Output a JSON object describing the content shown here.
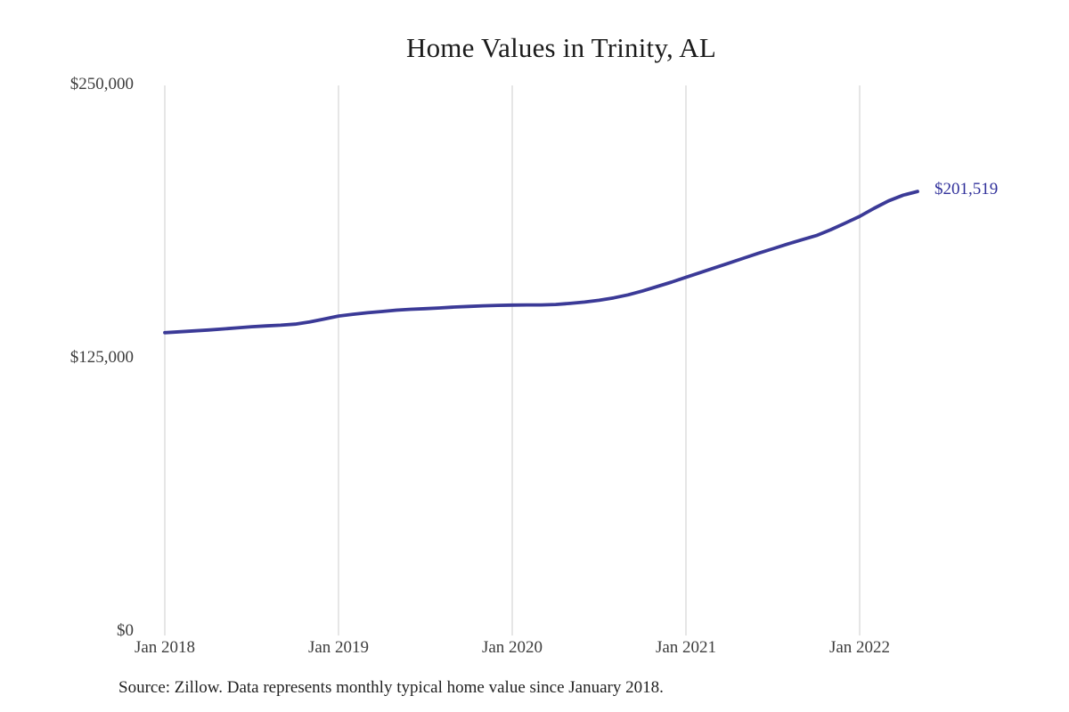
{
  "title": "Home Values in Trinity, AL",
  "source_note": "Source: Zillow. Data represents monthly typical home value since January 2018.",
  "end_label": "$201,519",
  "colors": {
    "line": "#3b3a97",
    "end_label": "#31319b",
    "gridline": "#cccccc",
    "axis_label": "#3d3d3d",
    "title": "#1b1b1b",
    "background": "#ffffff"
  },
  "chart_data": {
    "type": "line",
    "title": "Home Values in Trinity, AL",
    "xlabel": "",
    "ylabel": "",
    "ylim": [
      0,
      250000
    ],
    "grid": "vertical-only",
    "legend": "none",
    "frequency": "monthly",
    "start_month": "Jan 2018",
    "end_month": "May 2022",
    "x_tick_labels": [
      "Jan 2018",
      "Jan 2019",
      "Jan 2020",
      "Jan 2021",
      "Jan 2022"
    ],
    "y_tick_labels": [
      "$0",
      "$125,000",
      "$250,000"
    ],
    "y_tick_values": [
      0,
      125000,
      250000
    ],
    "series": [
      {
        "name": "Typical home value",
        "end_value": 201519,
        "values": [
          136900,
          137300,
          137700,
          138100,
          138600,
          139100,
          139600,
          140000,
          140300,
          140800,
          141800,
          143100,
          144500,
          145300,
          146000,
          146600,
          147200,
          147600,
          147900,
          148200,
          148600,
          148900,
          149200,
          149400,
          149500,
          149600,
          149600,
          149800,
          150300,
          150900,
          151700,
          152800,
          154200,
          156000,
          158000,
          160000,
          162200,
          164400,
          166600,
          168800,
          171000,
          173200,
          175300,
          177400,
          179400,
          181300,
          184000,
          187000,
          190100,
          193800,
          197200,
          199800,
          201519
        ]
      }
    ]
  }
}
